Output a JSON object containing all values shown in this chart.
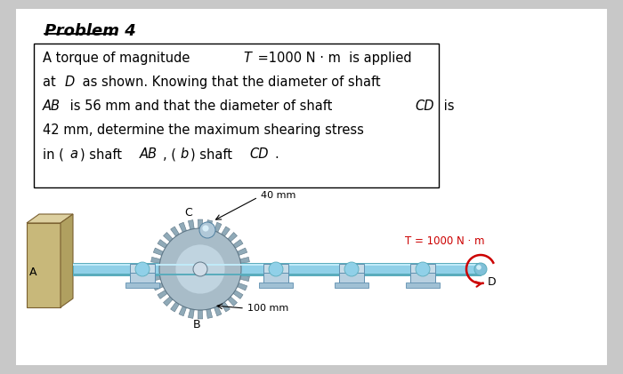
{
  "bg_color": "#c8c8c8",
  "white": "#ffffff",
  "title": "Problem 4",
  "title_fontsize": 13,
  "line1a": "A torque of magnitude  ",
  "line1b": "T",
  "line1c": " =1000 N · m  is applied",
  "line2": "at ",
  "line2b": "D",
  "line2c": " as shown. Knowing that the diameter of shaft",
  "line3a": "AB",
  "line3b": " is 56 mm and that the diameter of shaft ",
  "line3c": "CD",
  "line3d": " is",
  "line4": "42 mm, determine the maximum shearing stress",
  "line5a": "in (",
  "line5b": "a",
  "line5c": ") shaft ",
  "line5d": "AB",
  "line5e": ", (",
  "line5f": "b",
  "line5g": ") shaft ",
  "line5h": "CD",
  "line5i": ".",
  "wall_fc": "#c8b87a",
  "wall_top_fc": "#ddd0a0",
  "wall_right_fc": "#b0a060",
  "shaft_fc": "#90d0e8",
  "shaft_hl": "#c0eaf8",
  "shaft_dk": "#5aacbc",
  "gear_fc": "#a8bcc8",
  "gear_teeth_fc": "#90aab8",
  "gear_dk": "#607888",
  "bearing_fc": "#b8d0e0",
  "bearing_dk": "#6090b0",
  "torque_color": "#cc0000",
  "label_A": "A",
  "label_B": "B",
  "label_C": "C",
  "label_D": "D",
  "label_40mm": "40 mm",
  "label_100mm": "100 mm",
  "label_T": "T = 1000 N · m",
  "text_fontsize": 10.5,
  "diagram_label_fs": 9
}
